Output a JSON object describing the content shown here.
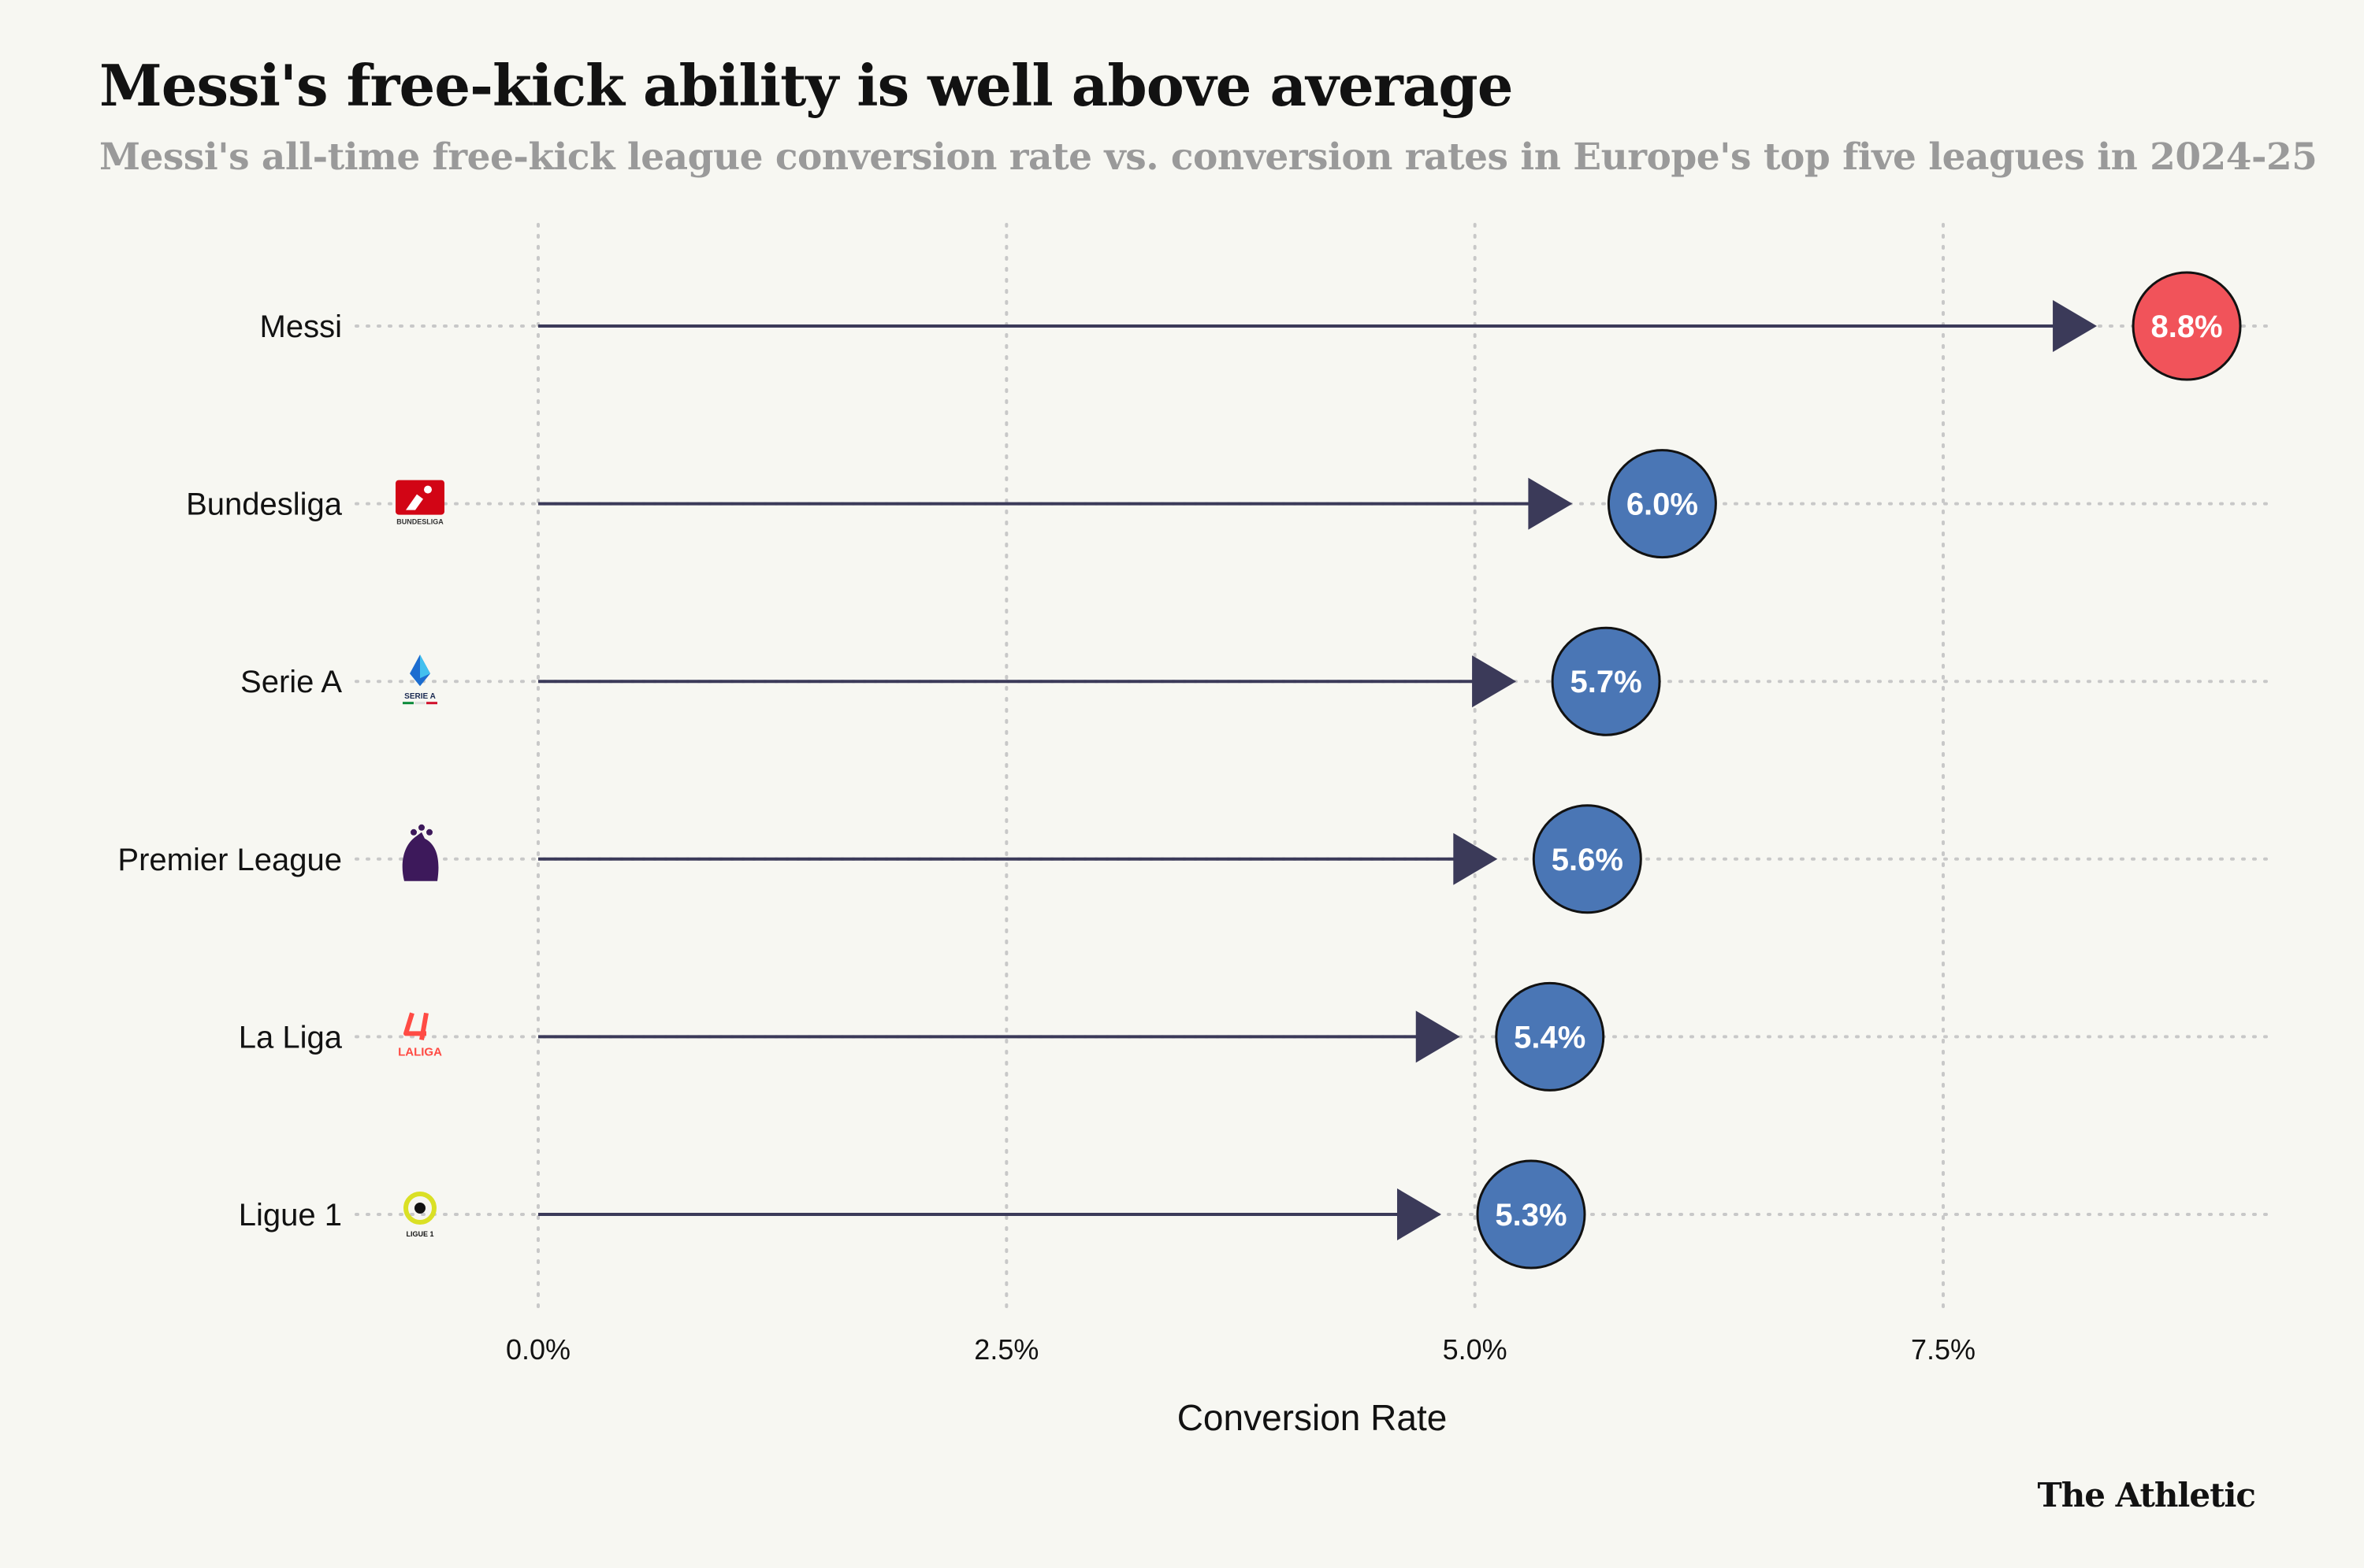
{
  "header": {
    "title": "Messi's free-kick ability is well above average",
    "subtitle": "Messi's all-time free-kick league conversion rate vs. conversion rates in Europe's top five leagues in 2024-25"
  },
  "footer": {
    "brand": "The Athletic"
  },
  "colors": {
    "background": "#f7f7f2",
    "highlight": "#f1535a",
    "league": "#4a76b5",
    "arrow": "#3b3a59",
    "grid": "#c8c8c8"
  },
  "chart_data": {
    "type": "dot-arrow",
    "title": "Messi's free-kick ability is well above average",
    "xlabel": "Conversion Rate",
    "ylabel": "",
    "xlim": [
      -1.2,
      9.3
    ],
    "xticks": [
      0,
      2.5,
      5,
      7.5
    ],
    "xtick_labels": [
      "0.0%",
      "2.5%",
      "5.0%",
      "7.5%"
    ],
    "grid": true,
    "series": [
      {
        "name": "Messi",
        "value": 8.8,
        "label": "8.8%",
        "highlight": true,
        "logo": null
      },
      {
        "name": "Bundesliga",
        "value": 6.0,
        "label": "6.0%",
        "highlight": false,
        "logo": "bundesliga-logo",
        "logo_text": "BUNDESLIGA"
      },
      {
        "name": "Serie A",
        "value": 5.7,
        "label": "5.7%",
        "highlight": false,
        "logo": "serie-a-logo",
        "logo_text": "SERIE A"
      },
      {
        "name": "Premier League",
        "value": 5.6,
        "label": "5.6%",
        "highlight": false,
        "logo": "premier-league-logo",
        "logo_text": ""
      },
      {
        "name": "La Liga",
        "value": 5.4,
        "label": "5.4%",
        "highlight": false,
        "logo": "la-liga-logo",
        "logo_text": "LALIGA"
      },
      {
        "name": "Ligue 1",
        "value": 5.3,
        "label": "5.3%",
        "highlight": false,
        "logo": "ligue-1-logo",
        "logo_text": "LIGUE 1"
      }
    ]
  }
}
